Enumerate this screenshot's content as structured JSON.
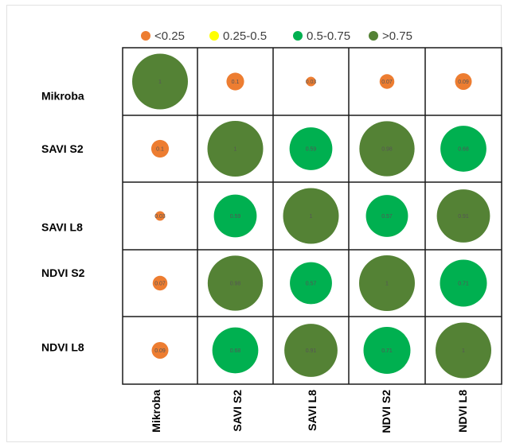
{
  "chart_data": {
    "type": "heatmap",
    "title": "",
    "rows": [
      "Mikroba",
      "SAVI S2",
      "SAVI L8",
      "NDVI S2",
      "NDVI L8"
    ],
    "columns": [
      "Mikroba",
      "SAVI S2",
      "SAVI L8",
      "NDVI S2",
      "NDVI L8"
    ],
    "values": [
      [
        1,
        0.1,
        0.03,
        0.07,
        0.09
      ],
      [
        0.1,
        1,
        0.59,
        0.98,
        0.68
      ],
      [
        0.03,
        0.59,
        1,
        0.57,
        0.91
      ],
      [
        0.07,
        0.98,
        0.57,
        1,
        0.71
      ],
      [
        0.09,
        0.68,
        0.91,
        0.71,
        1
      ]
    ],
    "value_labels": [
      [
        "1",
        "0.1",
        "0.03",
        "0.07",
        "0.09"
      ],
      [
        "0.1",
        "1",
        "0.59",
        "0.98",
        "0.68"
      ],
      [
        "0.03",
        "0.59",
        "1",
        "0.57",
        "0.91"
      ],
      [
        "0.07",
        "0.98",
        "0.57",
        "1",
        "0.71"
      ],
      [
        "0.09",
        "0.68",
        "0.91",
        "0.71",
        "1"
      ]
    ],
    "legend": {
      "placement": "top",
      "entries": [
        {
          "label": "<0.25",
          "color": "#ED7D31"
        },
        {
          "label": "0.25-0.5",
          "color": "#FFFF00"
        },
        {
          "label": "0.5-0.75",
          "color": "#00B050"
        },
        {
          "label": ">0.75",
          "color": "#548235"
        }
      ]
    },
    "grid": true
  }
}
